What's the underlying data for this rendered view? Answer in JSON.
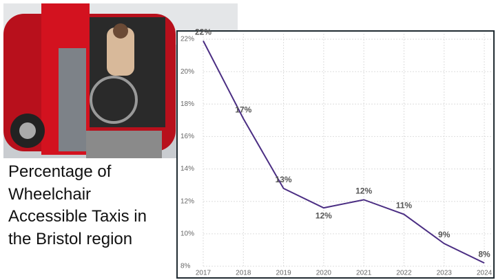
{
  "slide_title": "Percentage of Wheelchair Accessible Taxis in the Bristol region",
  "chart_data": {
    "type": "line",
    "categories": [
      "2017",
      "2018",
      "2019",
      "2020",
      "2021",
      "2022",
      "2023",
      "2024"
    ],
    "series": [
      {
        "color": "#4b2e83",
        "values": [
          21.9,
          17.1,
          12.8,
          11.6,
          12.1,
          11.2,
          9.4,
          8.2
        ],
        "value_labels": [
          "22%",
          "17%",
          "13%",
          "12%",
          "12%",
          "11%",
          "9%",
          "8%"
        ]
      }
    ],
    "ylim": [
      8,
      22
    ],
    "yticks": [
      {
        "value": 8,
        "label": "8%"
      },
      {
        "value": 10,
        "label": "10%"
      },
      {
        "value": 12,
        "label": "12%"
      },
      {
        "value": 14,
        "label": "14%"
      },
      {
        "value": 16,
        "label": "16%"
      },
      {
        "value": 18,
        "label": "18%"
      },
      {
        "value": 20,
        "label": "20%"
      },
      {
        "value": 22,
        "label": "22%"
      }
    ],
    "grid": true
  }
}
